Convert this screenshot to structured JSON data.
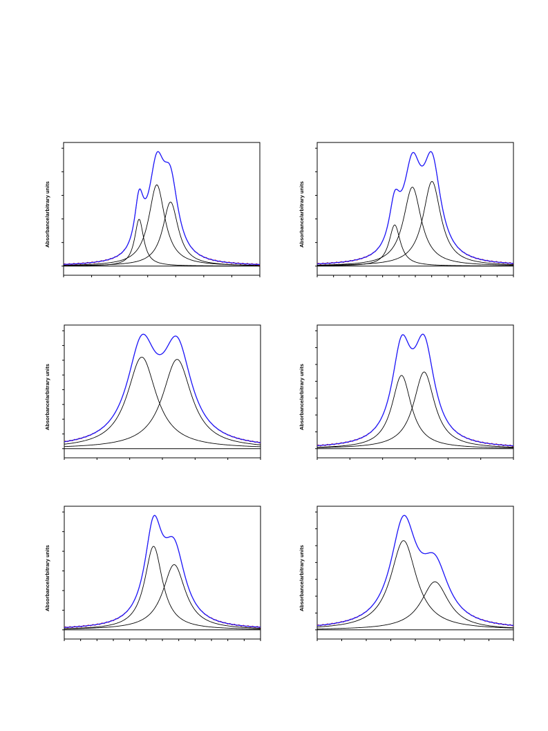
{
  "colors": {
    "fit": "#1a1aff",
    "experimental": "#e02020",
    "components": "#000000"
  },
  "chart_data": [
    {
      "type": "line",
      "ylabel": "Absorbance/arbitrary units",
      "xlim": [
        0,
        1
      ],
      "ylim": [
        -0.08,
        1.08
      ],
      "x_ticks": 7,
      "y_ticks": 5,
      "baseline": 0,
      "components": [
        {
          "center": 0.385,
          "height": 0.41,
          "width": 0.028
        },
        {
          "center": 0.475,
          "height": 0.71,
          "width": 0.05
        },
        {
          "center": 0.545,
          "height": 0.56,
          "width": 0.048
        }
      ],
      "fit_peak": 1.0
    },
    {
      "type": "line",
      "ylabel": "Absorbance/arbitrary units",
      "xlim": [
        0,
        1
      ],
      "ylim": [
        -0.08,
        1.08
      ],
      "x_ticks": 12,
      "y_ticks": 5,
      "baseline": 0,
      "components": [
        {
          "center": 0.395,
          "height": 0.36,
          "width": 0.035
        },
        {
          "center": 0.485,
          "height": 0.69,
          "width": 0.055
        },
        {
          "center": 0.585,
          "height": 0.74,
          "width": 0.055
        }
      ],
      "fit_peak": 1.0
    },
    {
      "type": "line",
      "ylabel": "Absorbance/arbitrary units",
      "xlim": [
        0,
        1
      ],
      "ylim": [
        -0.08,
        1.08
      ],
      "x_ticks": 6,
      "y_ticks": 8,
      "baseline": 0,
      "components": [
        {
          "center": 0.395,
          "height": 0.8,
          "width": 0.09
        },
        {
          "center": 0.575,
          "height": 0.78,
          "width": 0.09
        }
      ],
      "fit_peak": 1.0
    },
    {
      "type": "line",
      "ylabel": "Absorbance/arbitrary units",
      "xlim": [
        0,
        1
      ],
      "ylim": [
        -0.08,
        1.08
      ],
      "x_ticks": 6,
      "y_ticks": 7,
      "baseline": 0,
      "components": [
        {
          "center": 0.43,
          "height": 0.64,
          "width": 0.06
        },
        {
          "center": 0.545,
          "height": 0.67,
          "width": 0.065
        }
      ],
      "fit_peak": 1.0
    },
    {
      "type": "line",
      "ylabel": "Absorbance/arbitrary units",
      "xlim": [
        0,
        1
      ],
      "ylim": [
        -0.08,
        1.08
      ],
      "x_ticks": 12,
      "y_ticks": 6,
      "baseline": 0,
      "components": [
        {
          "center": 0.455,
          "height": 0.73,
          "width": 0.055
        },
        {
          "center": 0.56,
          "height": 0.57,
          "width": 0.07
        }
      ],
      "fit_peak": 1.0
    },
    {
      "type": "line",
      "ylabel": "Absorbance/arbitrary units",
      "xlim": [
        0,
        1
      ],
      "ylim": [
        -0.08,
        1.08
      ],
      "x_ticks": 8,
      "y_ticks": 7,
      "baseline": 0,
      "components": [
        {
          "center": 0.44,
          "height": 0.78,
          "width": 0.08
        },
        {
          "center": 0.6,
          "height": 0.42,
          "width": 0.085
        }
      ],
      "fit_peak": 1.0
    }
  ]
}
